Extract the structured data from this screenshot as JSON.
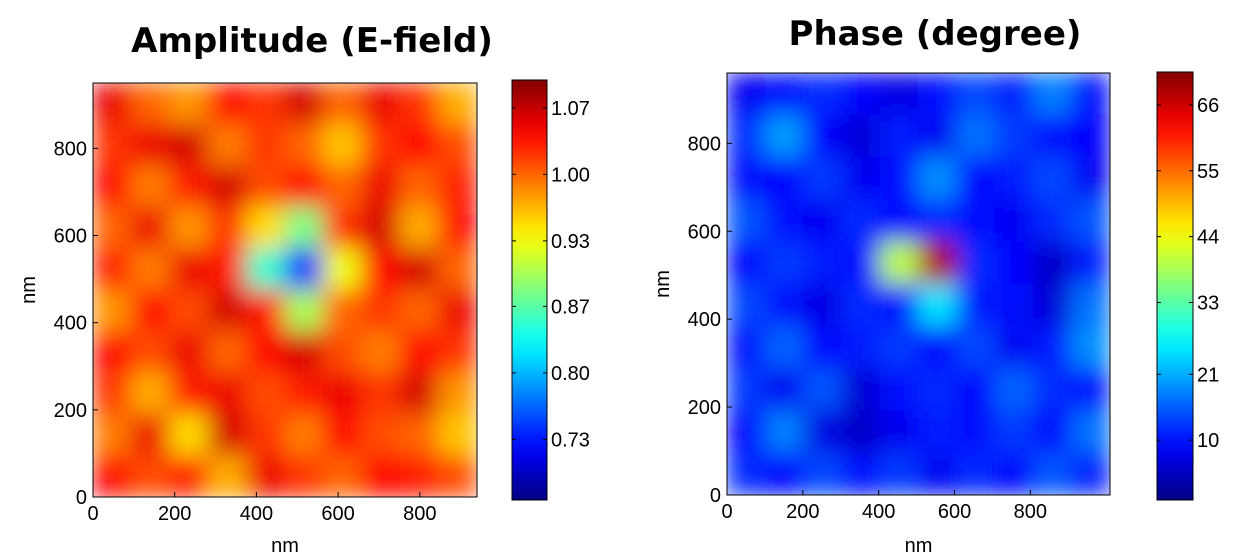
{
  "chart_data": [
    {
      "type": "heatmap",
      "title": "Amplitude (E-field)",
      "xlabel": "nm",
      "ylabel": "nm",
      "xlim": [
        0,
        940
      ],
      "ylim": [
        0,
        950
      ],
      "xticks": [
        0,
        200,
        400,
        600,
        800
      ],
      "yticks": [
        0,
        200,
        400,
        600,
        800
      ],
      "colormap": "jet",
      "clim": [
        0.672,
        1.095
      ],
      "cticks": [
        {
          "value": 1.067,
          "label": "1.07"
        },
        {
          "value": 1.0,
          "label": "1.00"
        },
        {
          "value": 0.933,
          "label": "0.93"
        },
        {
          "value": 0.867,
          "label": "0.87"
        },
        {
          "value": 0.8,
          "label": "0.80"
        },
        {
          "value": 0.733,
          "label": "0.73"
        }
      ],
      "values": [
        [
          1.05,
          1.0,
          0.98,
          1.04,
          1.02,
          1.06,
          1.0,
          1.05,
          1.02,
          0.97
        ],
        [
          1.02,
          1.05,
          1.06,
          0.99,
          1.02,
          1.0,
          0.96,
          1.02,
          1.04,
          1.01
        ],
        [
          1.04,
          0.99,
          1.03,
          1.06,
          1.01,
          1.04,
          1.0,
          1.05,
          1.0,
          1.03
        ],
        [
          1.0,
          1.05,
          0.98,
          1.02,
          0.95,
          0.88,
          1.02,
          1.06,
          0.97,
          1.04
        ],
        [
          1.03,
          0.99,
          1.05,
          1.03,
          0.85,
          0.74,
          0.93,
          1.04,
          1.06,
          1.0
        ],
        [
          0.98,
          1.04,
          1.01,
          1.06,
          1.03,
          0.9,
          1.0,
          1.02,
          1.0,
          1.05
        ],
        [
          1.04,
          1.01,
          1.05,
          1.0,
          1.04,
          1.06,
          1.01,
          0.99,
          1.04,
          1.02
        ],
        [
          1.02,
          0.97,
          1.03,
          1.05,
          1.01,
          1.03,
          1.05,
          1.02,
          1.06,
          0.98
        ],
        [
          0.99,
          1.05,
          0.95,
          1.06,
          1.02,
          0.99,
          1.04,
          1.01,
          1.0,
          0.96
        ],
        [
          1.04,
          1.01,
          1.03,
          0.97,
          1.05,
          1.02,
          1.0,
          1.04,
          1.03,
          1.01
        ]
      ]
    },
    {
      "type": "heatmap",
      "title": "Phase (degree)",
      "xlabel": "nm",
      "ylabel": "nm",
      "xlim": [
        0,
        1010
      ],
      "ylim": [
        0,
        960
      ],
      "xticks": [
        0,
        200,
        400,
        600,
        800
      ],
      "yticks": [
        0,
        200,
        400,
        600,
        800
      ],
      "colormap": "jet",
      "clim": [
        0,
        71.5
      ],
      "cticks": [
        66,
        55,
        44,
        33,
        21,
        10
      ],
      "values": [
        [
          8,
          10,
          12,
          9,
          7,
          10,
          14,
          11,
          18,
          10
        ],
        [
          12,
          20,
          9,
          6,
          11,
          8,
          17,
          13,
          10,
          9
        ],
        [
          10,
          9,
          13,
          8,
          10,
          19,
          9,
          11,
          14,
          8
        ],
        [
          15,
          10,
          8,
          12,
          9,
          12,
          10,
          8,
          12,
          15
        ],
        [
          9,
          13,
          11,
          10,
          40,
          68,
          12,
          9,
          5,
          11
        ],
        [
          14,
          10,
          7,
          12,
          10,
          25,
          11,
          10,
          6,
          17
        ],
        [
          10,
          16,
          9,
          11,
          13,
          9,
          14,
          8,
          11,
          19
        ],
        [
          13,
          8,
          15,
          6,
          10,
          12,
          9,
          16,
          12,
          10
        ],
        [
          9,
          18,
          7,
          5,
          8,
          11,
          10,
          13,
          9,
          17
        ],
        [
          12,
          9,
          14,
          10,
          13,
          8,
          12,
          9,
          15,
          11
        ]
      ]
    }
  ]
}
